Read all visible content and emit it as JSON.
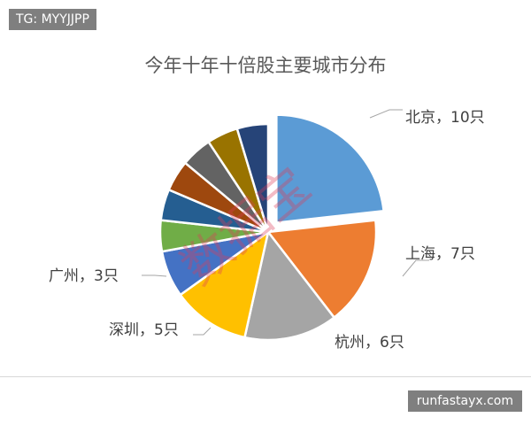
{
  "watermark_tag": "TG: MYYJJPP",
  "site_label": "runfastayx.com",
  "chart_data": {
    "type": "pie",
    "title": "今年十年十倍股主要城市分布",
    "unit": "只",
    "slices": [
      {
        "name": "北京",
        "value": 10,
        "label": "北京，10只",
        "color": "#5B9BD5",
        "exploded": true
      },
      {
        "name": "上海",
        "value": 7,
        "label": "上海，7只",
        "color": "#ED7D31"
      },
      {
        "name": "杭州",
        "value": 6,
        "label": "杭州，6只",
        "color": "#A5A5A5"
      },
      {
        "name": "深圳",
        "value": 5,
        "label": "深圳，5只",
        "color": "#FFC000"
      },
      {
        "name": "广州",
        "value": 3,
        "label": "广州，3只",
        "color": "#4472C4"
      },
      {
        "name": "",
        "value": 2,
        "label": "",
        "color": "#70AD47"
      },
      {
        "name": "",
        "value": 2,
        "label": "",
        "color": "#255E91"
      },
      {
        "name": "",
        "value": 2,
        "label": "",
        "color": "#9E480E"
      },
      {
        "name": "",
        "value": 2,
        "label": "",
        "color": "#636363"
      },
      {
        "name": "",
        "value": 2,
        "label": "",
        "color": "#997300"
      },
      {
        "name": "",
        "value": 2,
        "label": "",
        "color": "#264478"
      }
    ],
    "legend": "none",
    "watermark": "数据宝"
  }
}
